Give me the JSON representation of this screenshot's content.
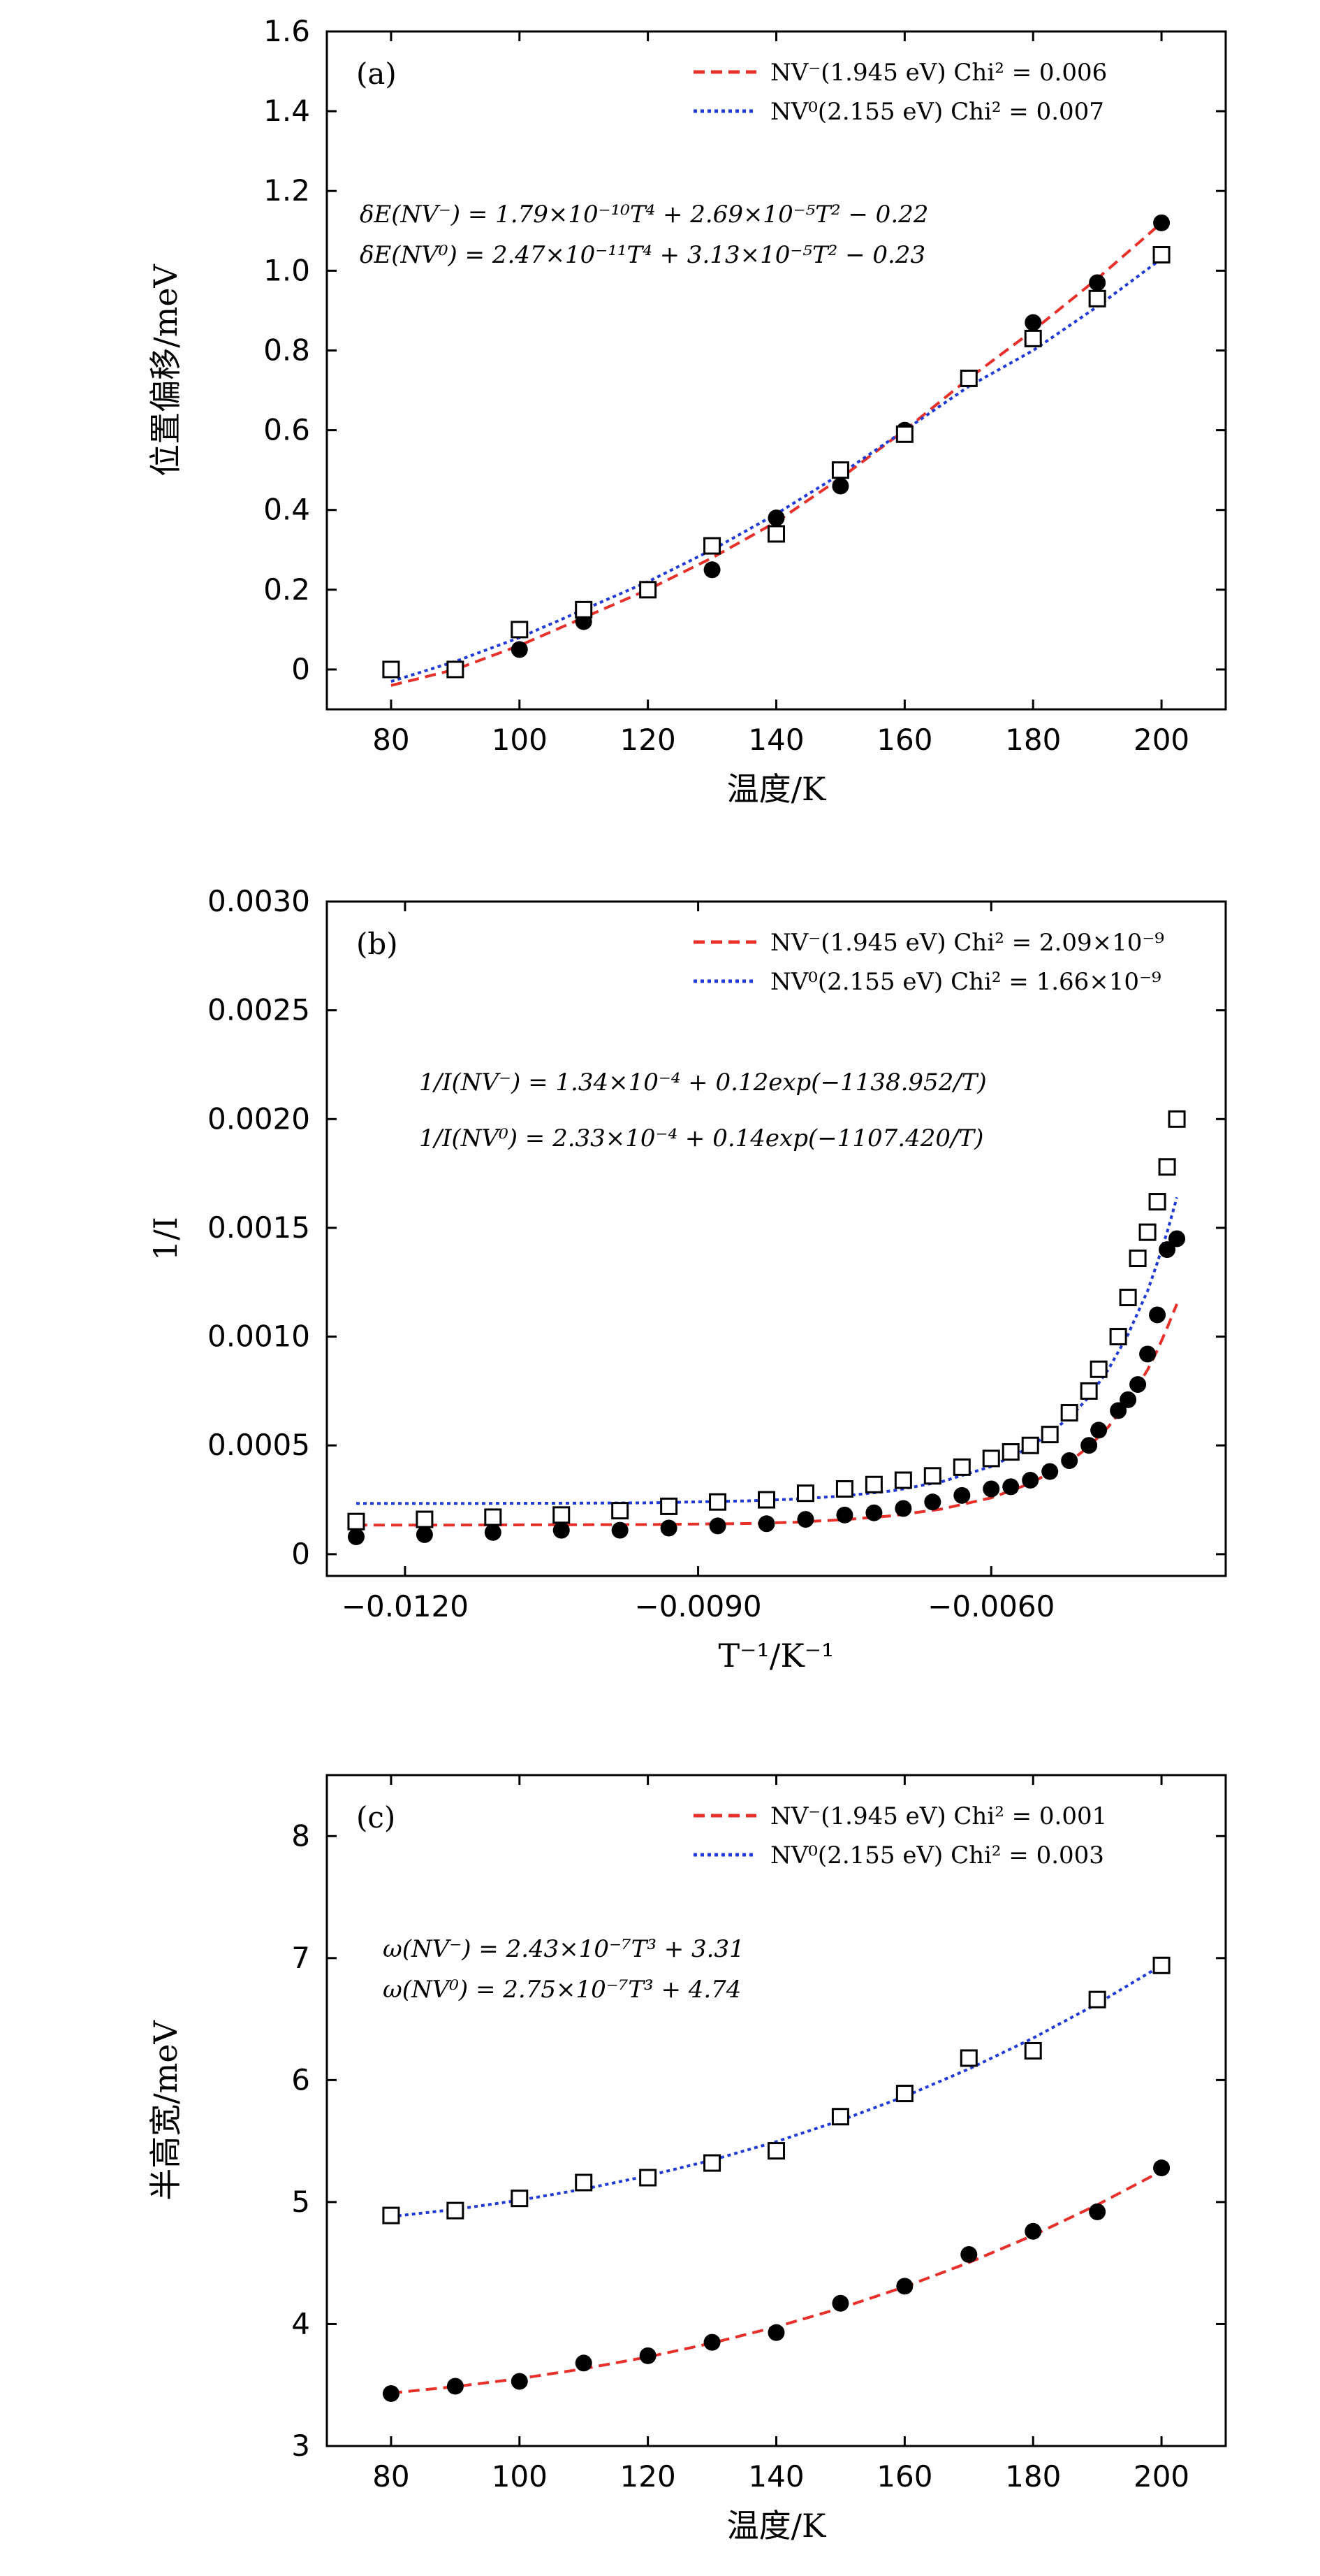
{
  "chart_data": [
    {
      "type": "scatter",
      "panel_label": "(a)",
      "xlabel": "温度/K",
      "ylabel": "位置偏移/meV",
      "xlim": [
        70,
        210
      ],
      "ylim": [
        -0.1,
        1.6
      ],
      "xticks": [
        80,
        100,
        120,
        140,
        160,
        180,
        200
      ],
      "yticks": [
        0,
        0.2,
        0.4,
        0.6,
        0.8,
        1.0,
        1.2,
        1.4,
        1.6
      ],
      "ytick_labels": [
        "0",
        "0.2",
        "0.4",
        "0.6",
        "0.8",
        "1.0",
        "1.2",
        "1.4",
        "1.6"
      ],
      "xtick_labels": [
        "80",
        "100",
        "120",
        "140",
        "160",
        "180",
        "200"
      ],
      "legend_position": "top-right",
      "legend": [
        {
          "label": "NV⁻(1.945 eV) Chi² = 0.006",
          "color": "#e8302a",
          "style": "dashed"
        },
        {
          "label": "NV⁰(2.155 eV) Chi² = 0.007",
          "color": "#1f3ad6",
          "style": "dotted"
        }
      ],
      "equations": [
        "δE(NV⁻) = 1.79×10⁻¹⁰T⁴ + 2.69×10⁻⁵T² − 0.22",
        "δE(NV⁰) = 2.47×10⁻¹¹T⁴ + 3.13×10⁻⁵T² − 0.23"
      ],
      "series": [
        {
          "name": "NV⁻ data",
          "marker": "filled-circle",
          "color": "#000000",
          "x": [
            80,
            90,
            100,
            110,
            120,
            130,
            140,
            150,
            160,
            170,
            180,
            190,
            200
          ],
          "y": [
            0.0,
            0.0,
            0.05,
            0.12,
            0.2,
            0.25,
            0.38,
            0.46,
            0.6,
            0.73,
            0.87,
            0.97,
            1.12
          ]
        },
        {
          "name": "NV⁰ data",
          "marker": "open-square",
          "color": "#000000",
          "x": [
            80,
            90,
            100,
            110,
            120,
            130,
            140,
            150,
            160,
            170,
            180,
            190,
            200
          ],
          "y": [
            0.0,
            0.0,
            0.1,
            0.15,
            0.2,
            0.31,
            0.34,
            0.5,
            0.59,
            0.73,
            0.83,
            0.93,
            1.04
          ]
        },
        {
          "name": "NV⁻ fit",
          "line": "dashed",
          "color": "#e8302a",
          "x": [
            80,
            90,
            100,
            110,
            120,
            130,
            140,
            150,
            160,
            170,
            180,
            190,
            200
          ],
          "y": [
            -0.04,
            0.0,
            0.06,
            0.13,
            0.2,
            0.28,
            0.37,
            0.48,
            0.6,
            0.73,
            0.85,
            0.98,
            1.12
          ]
        },
        {
          "name": "NV⁰ fit",
          "line": "dotted",
          "color": "#1f3ad6",
          "x": [
            80,
            90,
            100,
            110,
            120,
            130,
            140,
            150,
            160,
            170,
            180,
            190,
            200
          ],
          "y": [
            -0.03,
            0.02,
            0.08,
            0.15,
            0.22,
            0.3,
            0.39,
            0.49,
            0.6,
            0.71,
            0.8,
            0.91,
            1.03
          ]
        }
      ]
    },
    {
      "type": "scatter",
      "panel_label": "(b)",
      "xlabel": "T⁻¹/K⁻¹",
      "ylabel": "1/I",
      "xlim": [
        -0.0128,
        -0.0036
      ],
      "ylim": [
        -0.0001,
        0.003
      ],
      "xticks": [
        -0.012,
        -0.009,
        -0.006
      ],
      "xtick_labels": [
        "−0.0120",
        "−0.0090",
        "−0.0060"
      ],
      "yticks": [
        0,
        0.0005,
        0.001,
        0.0015,
        0.002,
        0.0025,
        0.003
      ],
      "ytick_labels": [
        "0",
        "0.0005",
        "0.0010",
        "0.0015",
        "0.0020",
        "0.0025",
        "0.0030"
      ],
      "legend_position": "top-right",
      "legend": [
        {
          "label": "NV⁻(1.945 eV) Chi² = 2.09×10⁻⁹",
          "color": "#e8302a",
          "style": "dashed"
        },
        {
          "label": "NV⁰(2.155 eV) Chi² = 1.66×10⁻⁹",
          "color": "#1f3ad6",
          "style": "dotted"
        }
      ],
      "equations": [
        "1/I(NV⁻) = 1.34×10⁻⁴ + 0.12exp(−1138.952/T)",
        "1/I(NV⁰) = 2.33×10⁻⁴ + 0.14exp(−1107.420/T)"
      ],
      "series": [
        {
          "name": "NV⁻ data",
          "marker": "filled-circle",
          "color": "#000000",
          "x": [
            -0.0125,
            -0.0118,
            -0.0111,
            -0.0104,
            -0.0098,
            -0.0093,
            -0.0088,
            -0.0083,
            -0.0079,
            -0.0075,
            -0.0072,
            -0.0069,
            -0.0066,
            -0.0063,
            -0.006,
            -0.0058,
            -0.0056,
            -0.0054,
            -0.0052,
            -0.005,
            -0.0049,
            -0.0047,
            -0.0046,
            -0.0045,
            -0.0044,
            -0.0043,
            -0.0042,
            -0.0041
          ],
          "y": [
            8e-05,
            9e-05,
            0.0001,
            0.00011,
            0.00011,
            0.00012,
            0.00013,
            0.00014,
            0.00016,
            0.00018,
            0.00019,
            0.00021,
            0.00024,
            0.00027,
            0.0003,
            0.00031,
            0.00034,
            0.00038,
            0.00043,
            0.0005,
            0.00057,
            0.00066,
            0.00071,
            0.00078,
            0.00092,
            0.0011,
            0.0014,
            0.00145
          ]
        },
        {
          "name": "NV⁰ data",
          "marker": "open-square",
          "color": "#000000",
          "x": [
            -0.0125,
            -0.0118,
            -0.0111,
            -0.0104,
            -0.0098,
            -0.0093,
            -0.0088,
            -0.0083,
            -0.0079,
            -0.0075,
            -0.0072,
            -0.0069,
            -0.0066,
            -0.0063,
            -0.006,
            -0.0058,
            -0.0056,
            -0.0054,
            -0.0052,
            -0.005,
            -0.0049,
            -0.0047,
            -0.0046,
            -0.0045,
            -0.0044,
            -0.0043,
            -0.0042,
            -0.0041
          ],
          "y": [
            0.00015,
            0.00016,
            0.00017,
            0.00018,
            0.0002,
            0.00022,
            0.00024,
            0.00025,
            0.00028,
            0.0003,
            0.00032,
            0.00034,
            0.00036,
            0.0004,
            0.00044,
            0.00047,
            0.0005,
            0.00055,
            0.00065,
            0.00075,
            0.00085,
            0.001,
            0.00118,
            0.00136,
            0.00148,
            0.00162,
            0.00178,
            0.002
          ]
        },
        {
          "name": "NV⁻ fit",
          "line": "dashed",
          "color": "#e8302a",
          "x": [
            -0.0125,
            -0.0115,
            -0.0105,
            -0.0095,
            -0.0085,
            -0.008,
            -0.0075,
            -0.007,
            -0.0065,
            -0.006,
            -0.0056,
            -0.0052,
            -0.005,
            -0.0048,
            -0.0046,
            -0.0044,
            -0.0043,
            -0.0042,
            -0.0041
          ],
          "y": [
            0.000134,
            0.000134,
            0.000135,
            0.000136,
            0.000141,
            0.000147,
            0.000159,
            0.000177,
            0.000208,
            0.000259,
            0.000325,
            0.000424,
            0.000495,
            0.000586,
            0.000701,
            0.000847,
            0.000937,
            0.00104,
            0.00115
          ]
        },
        {
          "name": "NV⁰ fit",
          "line": "dotted",
          "color": "#1f3ad6",
          "x": [
            -0.0125,
            -0.0115,
            -0.0105,
            -0.0095,
            -0.0085,
            -0.008,
            -0.0075,
            -0.007,
            -0.0065,
            -0.006,
            -0.0056,
            -0.0052,
            -0.005,
            -0.0048,
            -0.0046,
            -0.0044,
            -0.0043,
            -0.0042,
            -0.0041
          ],
          "y": [
            0.000233,
            0.000233,
            0.000234,
            0.000236,
            0.000245,
            0.000253,
            0.000268,
            0.000292,
            0.000334,
            0.000403,
            0.000492,
            0.000627,
            0.000723,
            0.00085,
            0.00101,
            0.00121,
            0.00134,
            0.00148,
            0.00164
          ]
        }
      ]
    },
    {
      "type": "scatter",
      "panel_label": "(c)",
      "xlabel": "温度/K",
      "ylabel": "半高宽/meV",
      "xlim": [
        70,
        210
      ],
      "ylim": [
        3,
        8.5
      ],
      "xticks": [
        80,
        100,
        120,
        140,
        160,
        180,
        200
      ],
      "xtick_labels": [
        "80",
        "100",
        "120",
        "140",
        "160",
        "180",
        "200"
      ],
      "yticks": [
        3,
        4,
        5,
        6,
        7,
        8
      ],
      "ytick_labels": [
        "3",
        "4",
        "5",
        "6",
        "7",
        "8"
      ],
      "legend_position": "top-right",
      "legend": [
        {
          "label": "NV⁻(1.945 eV) Chi² = 0.001",
          "color": "#e8302a",
          "style": "dashed"
        },
        {
          "label": "NV⁰(2.155 eV) Chi² = 0.003",
          "color": "#1f3ad6",
          "style": "dotted"
        }
      ],
      "equations": [
        "ω(NV⁻) = 2.43×10⁻⁷T³ + 3.31",
        "ω(NV⁰) = 2.75×10⁻⁷T³ + 4.74"
      ],
      "series": [
        {
          "name": "NV⁻ data",
          "marker": "filled-circle",
          "color": "#000000",
          "x": [
            80,
            90,
            100,
            110,
            120,
            130,
            140,
            150,
            160,
            170,
            180,
            190,
            200
          ],
          "y": [
            3.43,
            3.49,
            3.53,
            3.68,
            3.74,
            3.85,
            3.93,
            4.17,
            4.31,
            4.57,
            4.76,
            4.92,
            5.28
          ]
        },
        {
          "name": "NV⁰ data",
          "marker": "open-square",
          "color": "#000000",
          "x": [
            80,
            90,
            100,
            110,
            120,
            130,
            140,
            150,
            160,
            170,
            180,
            190,
            200
          ],
          "y": [
            4.89,
            4.93,
            5.03,
            5.16,
            5.2,
            5.32,
            5.42,
            5.7,
            5.89,
            6.18,
            6.24,
            6.66,
            6.94
          ]
        },
        {
          "name": "NV⁻ fit",
          "line": "dashed",
          "color": "#e8302a",
          "x": [
            80,
            90,
            100,
            110,
            120,
            130,
            140,
            150,
            160,
            170,
            180,
            190,
            200
          ],
          "y": [
            3.434,
            3.487,
            3.553,
            3.633,
            3.73,
            3.844,
            3.977,
            4.13,
            4.305,
            4.504,
            4.727,
            4.977,
            5.254
          ]
        },
        {
          "name": "NV⁰ fit",
          "line": "dotted",
          "color": "#1f3ad6",
          "x": [
            80,
            90,
            100,
            110,
            120,
            130,
            140,
            150,
            160,
            170,
            180,
            190,
            200
          ],
          "y": [
            4.881,
            4.94,
            5.015,
            5.106,
            5.215,
            5.344,
            5.495,
            5.668,
            5.866,
            6.091,
            6.344,
            6.626,
            6.94
          ]
        }
      ]
    }
  ]
}
